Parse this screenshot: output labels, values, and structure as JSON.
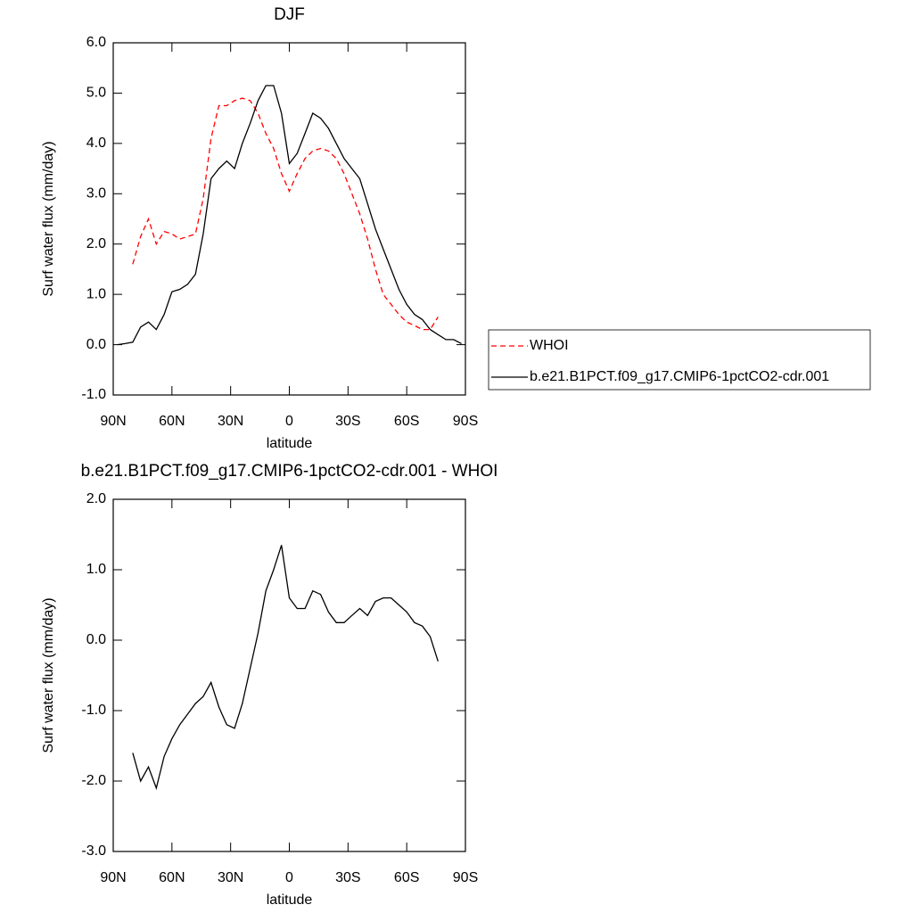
{
  "chart_data": [
    {
      "type": "line",
      "title": "DJF",
      "xlabel": "latitude",
      "ylabel": "Surf water flux (mm/day)",
      "x": [
        88,
        84,
        80,
        76,
        72,
        68,
        64,
        60,
        56,
        52,
        48,
        44,
        40,
        36,
        32,
        28,
        24,
        20,
        16,
        12,
        8,
        4,
        0,
        -4,
        -8,
        -12,
        -16,
        -20,
        -24,
        -28,
        -32,
        -36,
        -40,
        -44,
        -48,
        -52,
        -56,
        -60,
        -64,
        -68,
        -72,
        -76,
        -80,
        -84,
        -88
      ],
      "series": [
        {
          "name": "WHOI",
          "color": "#ff0000",
          "dash": true,
          "values": [
            null,
            null,
            1.6,
            2.15,
            2.5,
            2.0,
            2.25,
            2.2,
            2.1,
            2.15,
            2.2,
            2.9,
            4.1,
            4.75,
            4.75,
            4.85,
            4.9,
            4.85,
            4.6,
            4.2,
            3.9,
            3.4,
            3.05,
            3.4,
            3.7,
            3.85,
            3.9,
            3.85,
            3.7,
            3.4,
            3.0,
            2.6,
            2.1,
            1.5,
            1.0,
            0.8,
            0.6,
            0.45,
            0.38,
            0.3,
            0.3,
            0.55,
            null,
            null,
            null
          ]
        },
        {
          "name": "b.e21.B1PCT.f09_g17.CMIP6-1pctCO2-cdr.001",
          "color": "#000000",
          "dash": false,
          "values": [
            0.0,
            0.02,
            0.05,
            0.35,
            0.45,
            0.3,
            0.6,
            1.05,
            1.1,
            1.2,
            1.4,
            2.2,
            3.3,
            3.5,
            3.65,
            3.5,
            4.0,
            4.4,
            4.85,
            5.15,
            5.15,
            4.6,
            3.6,
            3.8,
            4.2,
            4.6,
            4.5,
            4.3,
            4.0,
            3.7,
            3.5,
            3.3,
            2.8,
            2.3,
            1.9,
            1.5,
            1.1,
            0.8,
            0.6,
            0.5,
            0.3,
            0.2,
            0.1,
            0.1,
            0.02
          ]
        }
      ],
      "xlim": [
        90,
        -90
      ],
      "xticks": [
        {
          "value": 90,
          "label": "90N"
        },
        {
          "value": 60,
          "label": "60N"
        },
        {
          "value": 30,
          "label": "30N"
        },
        0,
        {
          "value": -30,
          "label": "30S"
        },
        {
          "value": -60,
          "label": "60S"
        },
        {
          "value": -90,
          "label": "90S"
        }
      ],
      "ylim": [
        -1,
        6
      ],
      "yticks": [
        {
          "value": -1,
          "label": "-1.0"
        },
        {
          "value": 0,
          "label": "0.0"
        },
        {
          "value": 1,
          "label": "1.0"
        },
        {
          "value": 2,
          "label": "2.0"
        },
        {
          "value": 3,
          "label": "3.0"
        },
        {
          "value": 4,
          "label": "4.0"
        },
        {
          "value": 5,
          "label": "5.0"
        },
        {
          "value": 6,
          "label": "6.0"
        }
      ],
      "legend": "right"
    },
    {
      "type": "line",
      "title": "b.e21.B1PCT.f09_g17.CMIP6-1pctCO2-cdr.001 - WHOI",
      "xlabel": "latitude",
      "ylabel": "Surf water flux (mm/day)",
      "x": [
        88,
        84,
        80,
        76,
        72,
        68,
        64,
        60,
        56,
        52,
        48,
        44,
        40,
        36,
        32,
        28,
        24,
        20,
        16,
        12,
        8,
        4,
        0,
        -4,
        -8,
        -12,
        -16,
        -20,
        -24,
        -28,
        -32,
        -36,
        -40,
        -44,
        -48,
        -52,
        -56,
        -60,
        -64,
        -68,
        -72,
        -76,
        -80,
        -84,
        -88
      ],
      "series": [
        {
          "color": "#000000",
          "dash": false,
          "values": [
            null,
            null,
            -1.6,
            -2.0,
            -1.8,
            -2.1,
            -1.65,
            -1.4,
            -1.2,
            -1.05,
            -0.9,
            -0.8,
            -0.6,
            -0.95,
            -1.2,
            -1.25,
            -0.9,
            -0.4,
            0.1,
            0.7,
            1.0,
            1.35,
            0.6,
            0.45,
            0.45,
            0.7,
            0.65,
            0.4,
            0.25,
            0.25,
            0.35,
            0.45,
            0.35,
            0.55,
            0.6,
            0.6,
            0.5,
            0.4,
            0.25,
            0.2,
            0.05,
            -0.3,
            null,
            null,
            null
          ]
        }
      ],
      "xlim": [
        90,
        -90
      ],
      "xticks": [
        {
          "value": 90,
          "label": "90N"
        },
        {
          "value": 60,
          "label": "60N"
        },
        {
          "value": 30,
          "label": "30N"
        },
        0,
        {
          "value": -30,
          "label": "30S"
        },
        {
          "value": -60,
          "label": "60S"
        },
        {
          "value": -90,
          "label": "90S"
        }
      ],
      "ylim": [
        -3,
        2
      ],
      "yticks": [
        {
          "value": -3,
          "label": "-3.0"
        },
        {
          "value": -2,
          "label": "-2.0"
        },
        {
          "value": -1,
          "label": "-1.0"
        },
        {
          "value": 0,
          "label": "0.0"
        },
        {
          "value": 1,
          "label": "1.0"
        },
        {
          "value": 2,
          "label": "2.0"
        }
      ]
    }
  ]
}
